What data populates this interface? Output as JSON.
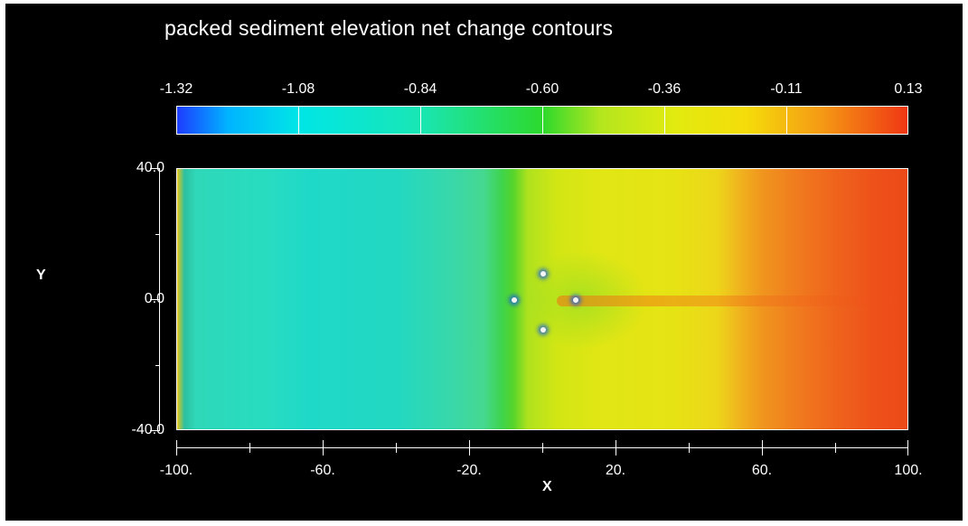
{
  "title": "packed sediment elevation net change contours",
  "chart_data": {
    "type": "heatmap",
    "title": "packed sediment elevation net change contours",
    "xlabel": "X",
    "ylabel": "Y",
    "xlim": [
      -100,
      100
    ],
    "ylim": [
      -40,
      40
    ],
    "x_tick_labels": [
      "-100.",
      "-60.",
      "-20.",
      "20.",
      "60.",
      "100."
    ],
    "x_tick_values": [
      -100,
      -60,
      -20,
      20,
      60,
      100
    ],
    "x_minor_tick_values": [
      -80,
      -40,
      0,
      40,
      80
    ],
    "y_tick_labels": [
      "40.0",
      "0.0",
      "-40.0"
    ],
    "y_tick_values": [
      40,
      0,
      -40
    ],
    "y_minor_tick_values": [
      20,
      -20
    ],
    "colorbar": {
      "labels": [
        "-1.32",
        "-1.08",
        "-0.84",
        "-0.60",
        "-0.36",
        "-0.11",
        "0.13"
      ],
      "values": [
        -1.32,
        -1.08,
        -0.84,
        -0.6,
        -0.36,
        -0.11,
        0.13
      ],
      "range": [
        -1.32,
        0.13
      ],
      "colormap": [
        "#1e3cff",
        "#00b4ff",
        "#00e6e6",
        "#19e6b4",
        "#2dd92d",
        "#b4e61e",
        "#e1eb0f",
        "#f5dc0a",
        "#f59b14",
        "#f03714"
      ]
    },
    "grid": false,
    "obstacles": [
      {
        "x": -8,
        "y": 0
      },
      {
        "x": 0,
        "y": 8
      },
      {
        "x": 0,
        "y": -9
      },
      {
        "x": 9,
        "y": 0
      }
    ]
  }
}
